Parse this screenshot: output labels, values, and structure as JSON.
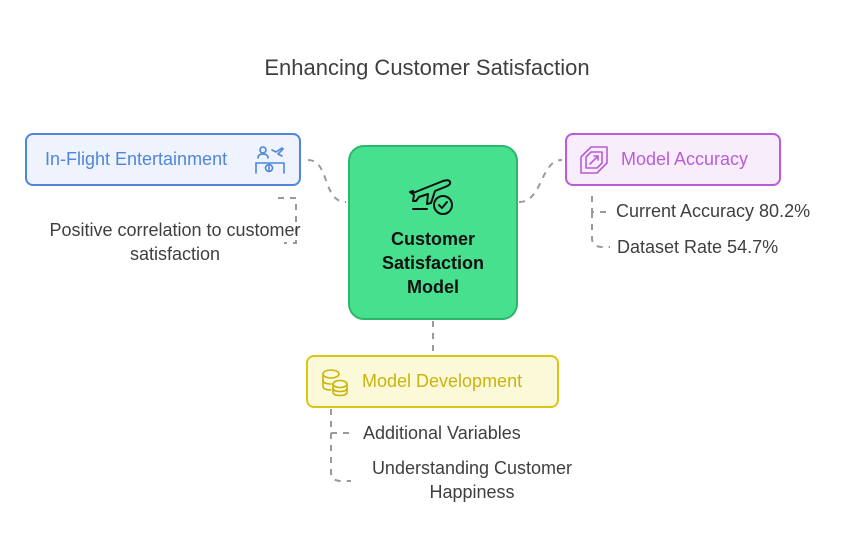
{
  "title": "Enhancing Customer Satisfaction",
  "center": {
    "label": "Customer\nSatisfaction\nModel",
    "icon": "plane-check-icon",
    "color": "#46e08f"
  },
  "nodes": {
    "entertainment": {
      "label": "In-Flight Entertainment",
      "icon": "passenger-seat-icon",
      "color": "#4f86db",
      "notes": [
        "Positive correlation to customer satisfaction"
      ]
    },
    "accuracy": {
      "label": "Model Accuracy",
      "icon": "target-ticket-icon",
      "color": "#bb5bd8",
      "notes": [
        "Current Accuracy 80.2%",
        "Dataset Rate 54.7%"
      ]
    },
    "development": {
      "label": "Model Development",
      "icon": "coins-stack-icon",
      "color": "#dbc616",
      "notes": [
        "Additional Variables",
        "Understanding Customer Happiness"
      ]
    }
  }
}
